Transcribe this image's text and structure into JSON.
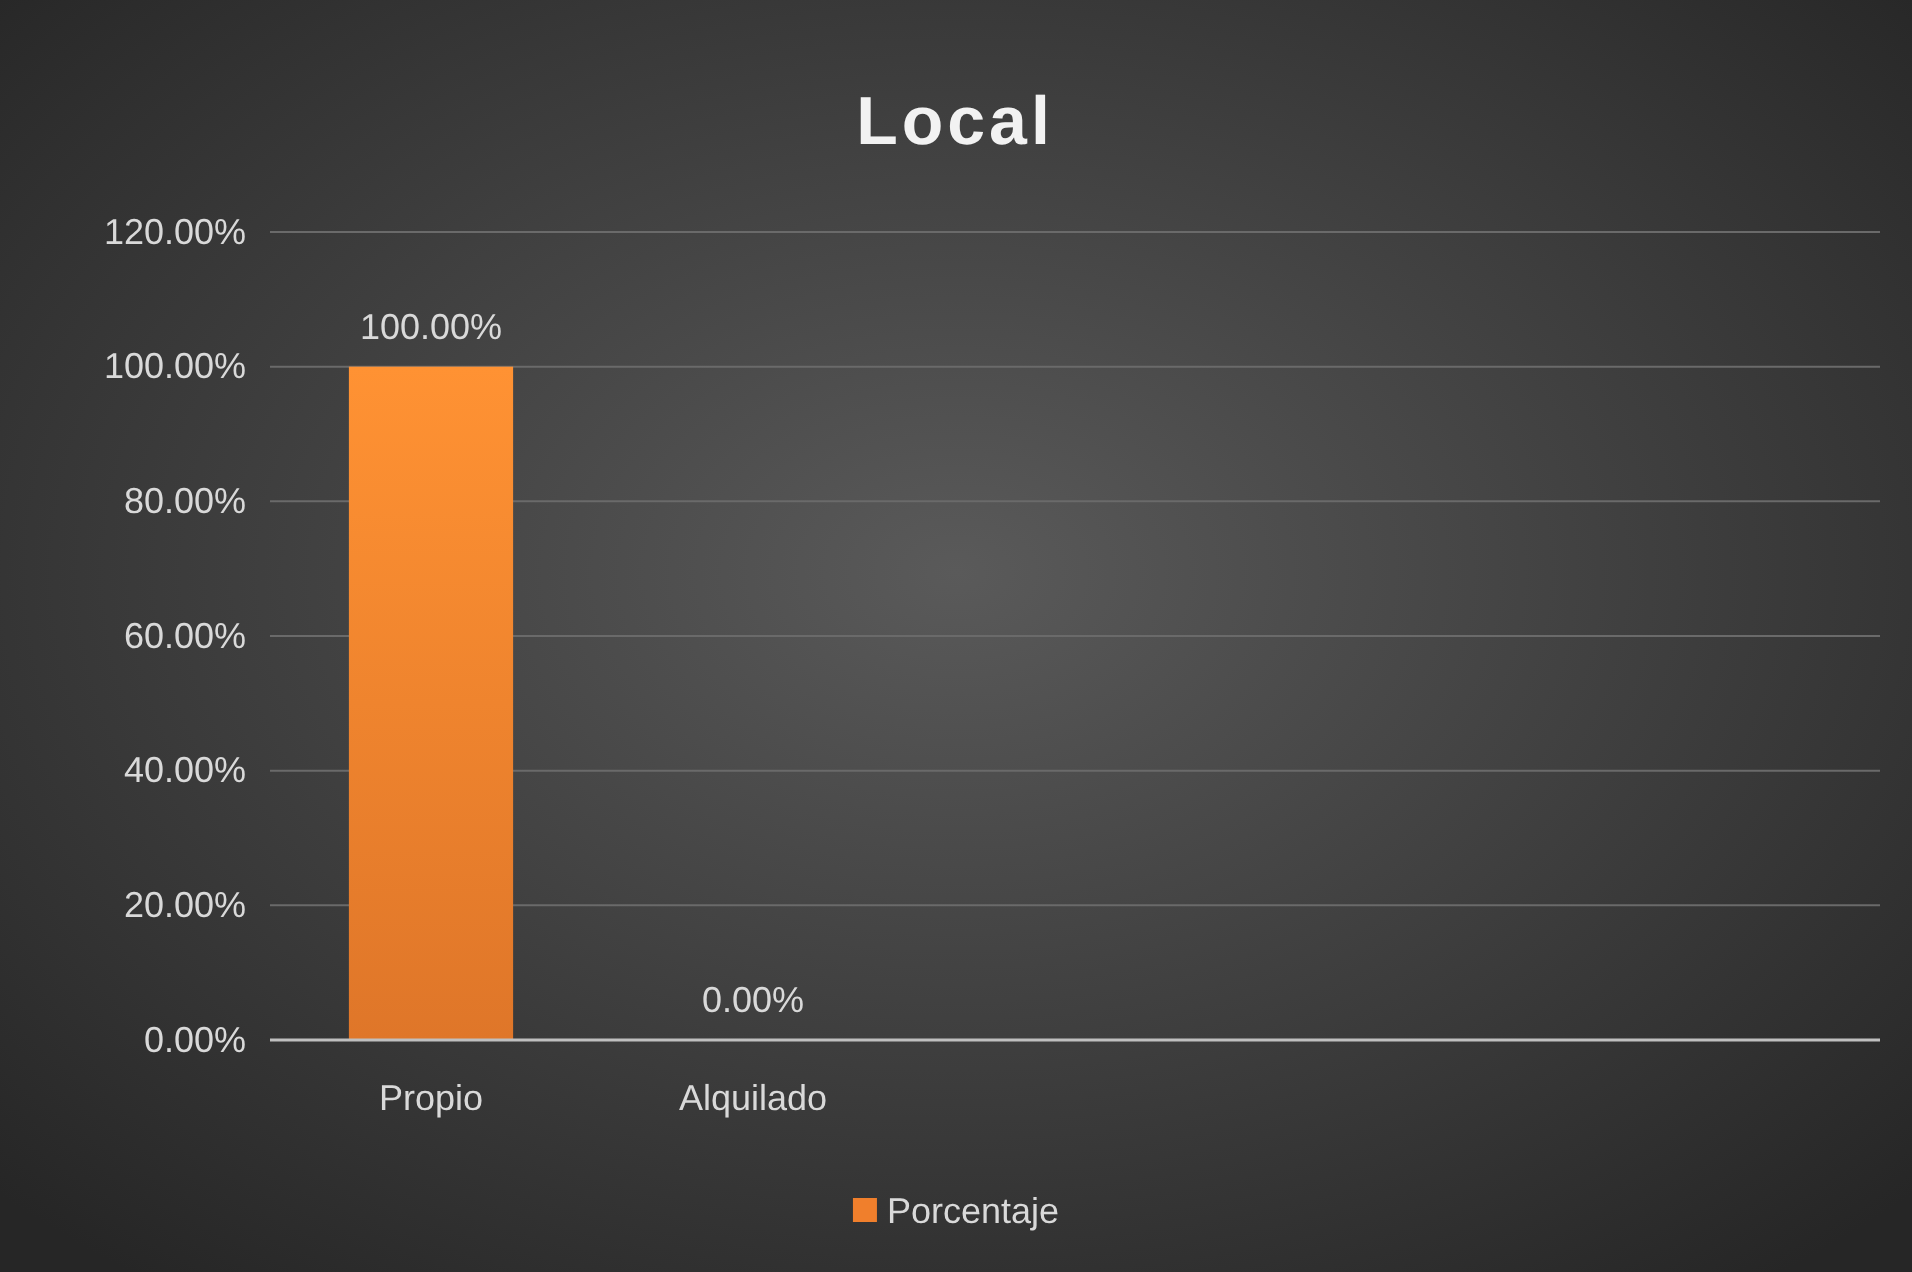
{
  "chart_data": {
    "type": "bar",
    "title": "Local",
    "categories": [
      "Propio",
      "Alquilado",
      null,
      null,
      null
    ],
    "series": [
      {
        "name": "Porcentaje",
        "color": "#f07f2c",
        "values": [
          100,
          0,
          null,
          null,
          null
        ],
        "value_labels": [
          "100.00%",
          "0.00%",
          null,
          null,
          null
        ]
      }
    ],
    "ylim": [
      0,
      120
    ],
    "yticks": [
      {
        "value": 0,
        "label": "0.00%"
      },
      {
        "value": 20,
        "label": "20.00%"
      },
      {
        "value": 40,
        "label": "40.00%"
      },
      {
        "value": 60,
        "label": "60.00%"
      },
      {
        "value": 80,
        "label": "80.00%"
      },
      {
        "value": 100,
        "label": "100.00%"
      },
      {
        "value": 120,
        "label": "120.00%"
      }
    ],
    "grid": "y",
    "legend": "bottom"
  }
}
